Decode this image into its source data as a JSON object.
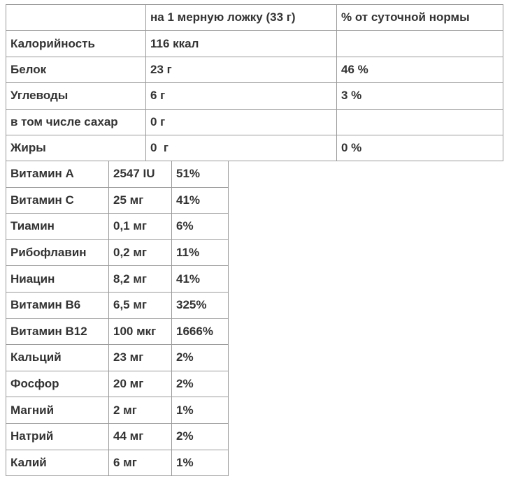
{
  "nutrition_table": {
    "header": [
      "на 1 мерную ложку (33 г)",
      "% от суточной нормы"
    ],
    "rows": [
      {
        "name": "Калорийность",
        "amount": "116 ккал"
      },
      {
        "name": "Белок",
        "amount": "23 г",
        "daily": "46 %"
      },
      {
        "name": "Углеводы",
        "amount": "6 г",
        "daily": "3 %"
      },
      {
        "name": "в том числе сахар",
        "amount": "0 г"
      },
      {
        "name": "Жиры",
        "amount": "0  г",
        "daily": "0 %"
      }
    ]
  },
  "vitamins_table": {
    "rows": [
      [
        "Витамин А",
        "2547 IU",
        "51%"
      ],
      [
        "Витамин С",
        "25 мг",
        "41%"
      ],
      [
        "Тиамин",
        "0,1 мг",
        "6%"
      ],
      [
        "Рибофлавин",
        "0,2 мг",
        "11%"
      ],
      [
        "Ниацин",
        "8,2 мг",
        "41%"
      ],
      [
        "Витамин В6",
        "6,5 мг",
        "325%"
      ],
      [
        "Витамин В12",
        "100 мкг",
        "1666%"
      ],
      [
        "Кальций",
        "23 мг",
        "2%"
      ],
      [
        "Фосфор",
        "20 мг",
        "2%"
      ],
      [
        "Магний",
        "2 мг",
        "1%"
      ],
      [
        "Натрий",
        "44 мг",
        "2%"
      ],
      [
        "Калий",
        "6 мг",
        "1%"
      ]
    ]
  }
}
